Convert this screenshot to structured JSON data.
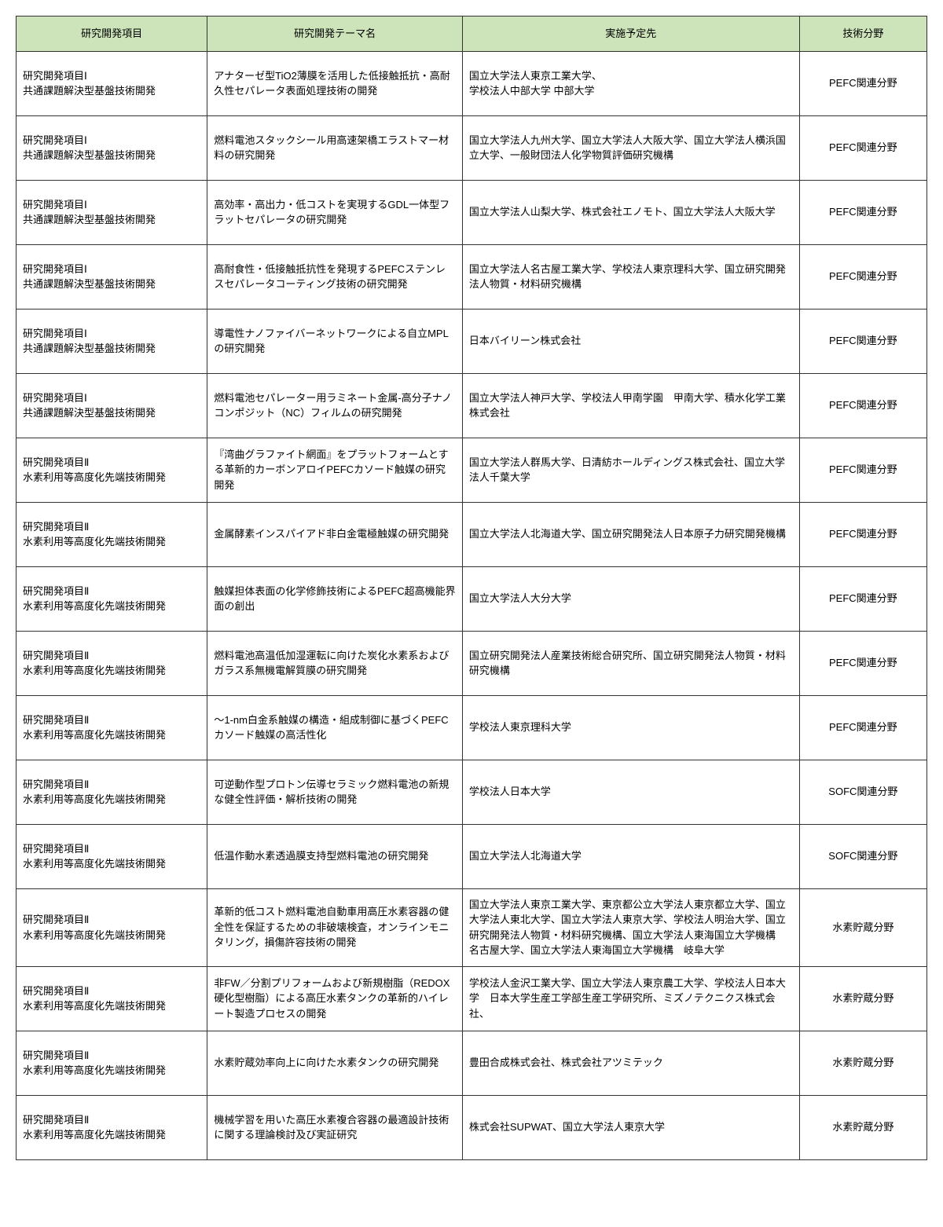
{
  "table": {
    "header_bg_color": "#cde4ba",
    "border_color": "#333333",
    "columns": [
      {
        "label": "研究開発項目",
        "width": "21%"
      },
      {
        "label": "研究開発テーマ名",
        "width": "28%"
      },
      {
        "label": "実施予定先",
        "width": "37%"
      },
      {
        "label": "技術分野",
        "width": "14%"
      }
    ],
    "rows": [
      {
        "item": "研究開発項目Ⅰ\n共通課題解決型基盤技術開発",
        "theme": "アナターゼ型TiO2薄膜を活用した低接触抵抗・高耐久性セパレータ表面処理技術の開発",
        "org": "国立大学法人東京工業大学、\n学校法人中部大学 中部大学",
        "field": "PEFC関連分野"
      },
      {
        "item": "研究開発項目Ⅰ\n共通課題解決型基盤技術開発",
        "theme": "燃料電池スタックシール用高速架橋エラストマー材料の研究開発",
        "org": "国立大学法人九州大学、国立大学法人大阪大学、国立大学法人横浜国立大学、一般財団法人化学物質評価研究機構",
        "field": "PEFC関連分野"
      },
      {
        "item": "研究開発項目Ⅰ\n共通課題解決型基盤技術開発",
        "theme": "高効率・高出力・低コストを実現するGDL一体型フラットセパレータの研究開発",
        "org": "国立大学法人山梨大学、株式会社エノモト、国立大学法人大阪大学",
        "field": "PEFC関連分野"
      },
      {
        "item": "研究開発項目Ⅰ\n共通課題解決型基盤技術開発",
        "theme": "高耐食性・低接触抵抗性を発現するPEFCステンレスセパレータコーティング技術の研究開発",
        "org": "国立大学法人名古屋工業大学、学校法人東京理科大学、国立研究開発法人物質・材料研究機構",
        "field": "PEFC関連分野"
      },
      {
        "item": "研究開発項目Ⅰ\n共通課題解決型基盤技術開発",
        "theme": "導電性ナノファイバーネットワークによる自立MPLの研究開発",
        "org": "日本バイリーン株式会社",
        "field": "PEFC関連分野"
      },
      {
        "item": "研究開発項目Ⅰ\n共通課題解決型基盤技術開発",
        "theme": "燃料電池セパレーター用ラミネート金属-高分子ナノコンポジット（NC）フィルムの研究開発",
        "org": "国立大学法人神戸大学、学校法人甲南学園　甲南大学、積水化学工業株式会社",
        "field": "PEFC関連分野"
      },
      {
        "item": "研究開発項目Ⅱ\n水素利用等高度化先端技術開発",
        "theme": "『湾曲グラファイト網面』をプラットフォームとする革新的カーボンアロイPEFCカソード触媒の研究開発",
        "org": "国立大学法人群馬大学、日清紡ホールディングス株式会社、国立大学法人千葉大学",
        "field": "PEFC関連分野"
      },
      {
        "item": "研究開発項目Ⅱ\n水素利用等高度化先端技術開発",
        "theme": "金属酵素インスパイアド非白金電極触媒の研究開発",
        "org": "国立大学法人北海道大学、国立研究開発法人日本原子力研究開発機構",
        "field": "PEFC関連分野"
      },
      {
        "item": "研究開発項目Ⅱ\n水素利用等高度化先端技術開発",
        "theme": "触媒担体表面の化学修飾技術によるPEFC超高機能界面の創出",
        "org": "国立大学法人大分大学",
        "field": "PEFC関連分野"
      },
      {
        "item": "研究開発項目Ⅱ\n水素利用等高度化先端技術開発",
        "theme": "燃料電池高温低加湿運転に向けた炭化水素系およびガラス系無機電解質膜の研究開発",
        "org": "国立研究開発法人産業技術総合研究所、国立研究開発法人物質・材料研究機構",
        "field": "PEFC関連分野"
      },
      {
        "item": "研究開発項目Ⅱ\n水素利用等高度化先端技術開発",
        "theme": "～1-nm白金系触媒の構造・組成制御に基づくPEFCカソード触媒の高活性化",
        "org": "学校法人東京理科大学",
        "field": "PEFC関連分野"
      },
      {
        "item": "研究開発項目Ⅱ\n水素利用等高度化先端技術開発",
        "theme": "可逆動作型プロトン伝導セラミック燃料電池の新規な健全性評価・解析技術の開発",
        "org": "学校法人日本大学",
        "field": "SOFC関連分野"
      },
      {
        "item": "研究開発項目Ⅱ\n水素利用等高度化先端技術開発",
        "theme": "低温作動水素透過膜支持型燃料電池の研究開発",
        "org": "国立大学法人北海道大学",
        "field": "SOFC関連分野"
      },
      {
        "item": "研究開発項目Ⅱ\n水素利用等高度化先端技術開発",
        "theme": "革新的低コスト燃料電池自動車用高圧水素容器の健全性を保証するための非破壊検査，オンラインモニタリング，損傷許容技術の開発",
        "org": "国立大学法人東京工業大学、東京都公立大学法人東京都立大学、国立大学法人東北大学、国立大学法人東京大学、学校法人明治大学、国立研究開発法人物質・材料研究機構、国立大学法人東海国立大学機構　名古屋大学、国立大学法人東海国立大学機構　岐阜大学",
        "field": "水素貯蔵分野"
      },
      {
        "item": "研究開発項目Ⅱ\n水素利用等高度化先端技術開発",
        "theme": "非FW／分割プリフォームおよび新規樹脂（REDOX硬化型樹脂）による高圧水素タンクの革新的ハイレート製造プロセスの開発",
        "org": "学校法人金沢工業大学、国立大学法人東京農工大学、学校法人日本大学　日本大学生産工学部生産工学研究所、ミズノテクニクス株式会社、",
        "field": "水素貯蔵分野"
      },
      {
        "item": "研究開発項目Ⅱ\n水素利用等高度化先端技術開発",
        "theme": "水素貯蔵効率向上に向けた水素タンクの研究開発",
        "org": "豊田合成株式会社、株式会社アツミテック",
        "field": "水素貯蔵分野"
      },
      {
        "item": "研究開発項目Ⅱ\n水素利用等高度化先端技術開発",
        "theme": "機械学習を用いた高圧水素複合容器の最適設計技術に関する理論検討及び実証研究",
        "org": "株式会社SUPWAT、国立大学法人東京大学",
        "field": "水素貯蔵分野"
      }
    ]
  }
}
